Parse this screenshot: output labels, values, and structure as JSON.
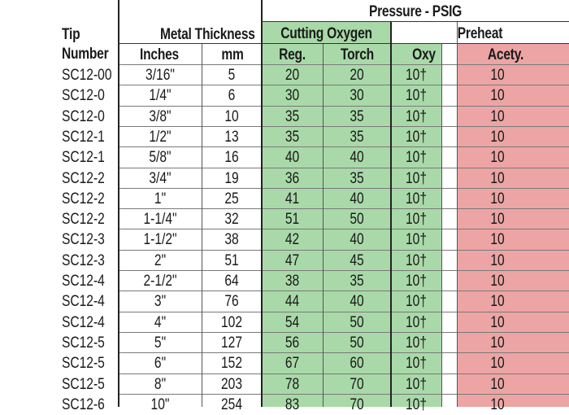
{
  "header": {
    "pressure_title": "Pressure - PSIG",
    "tip_label_1": "Tip",
    "tip_label_2": "Number",
    "metal_thickness": "Metal Thickness",
    "inches": "Inches",
    "mm": "mm",
    "cutting_oxygen": "Cutting Oxygen",
    "preheat": "Preheat",
    "reg": "Reg.",
    "torch": "Torch",
    "oxy": "Oxy",
    "acety": "Acety."
  },
  "colors": {
    "green": "#a9d9a9",
    "pink": "#eca4a4"
  },
  "rows": [
    {
      "tip": "SC12-00",
      "inches": "3/16\"",
      "mm": "5",
      "reg": "20",
      "torch": "20",
      "oxy": "10†",
      "acety": "10"
    },
    {
      "tip": "SC12-0",
      "inches": "1/4\"",
      "mm": "6",
      "reg": "30",
      "torch": "30",
      "oxy": "10†",
      "acety": "10"
    },
    {
      "tip": "SC12-0",
      "inches": "3/8\"",
      "mm": "10",
      "reg": "35",
      "torch": "35",
      "oxy": "10†",
      "acety": "10"
    },
    {
      "tip": "SC12-1",
      "inches": "1/2\"",
      "mm": "13",
      "reg": "35",
      "torch": "35",
      "oxy": "10†",
      "acety": "10"
    },
    {
      "tip": "SC12-1",
      "inches": "5/8\"",
      "mm": "16",
      "reg": "40",
      "torch": "40",
      "oxy": "10†",
      "acety": "10"
    },
    {
      "tip": "SC12-2",
      "inches": "3/4\"",
      "mm": "19",
      "reg": "36",
      "torch": "35",
      "oxy": "10†",
      "acety": "10"
    },
    {
      "tip": "SC12-2",
      "inches": "1\"",
      "mm": "25",
      "reg": "41",
      "torch": "40",
      "oxy": "10†",
      "acety": "10"
    },
    {
      "tip": "SC12-2",
      "inches": "1-1/4\"",
      "mm": "32",
      "reg": "51",
      "torch": "50",
      "oxy": "10†",
      "acety": "10"
    },
    {
      "tip": "SC12-3",
      "inches": "1-1/2\"",
      "mm": "38",
      "reg": "42",
      "torch": "40",
      "oxy": "10†",
      "acety": "10"
    },
    {
      "tip": "SC12-3",
      "inches": "2\"",
      "mm": "51",
      "reg": "47",
      "torch": "45",
      "oxy": "10†",
      "acety": "10"
    },
    {
      "tip": "SC12-4",
      "inches": "2-1/2\"",
      "mm": "64",
      "reg": "38",
      "torch": "35",
      "oxy": "10†",
      "acety": "10"
    },
    {
      "tip": "SC12-4",
      "inches": "3\"",
      "mm": "76",
      "reg": "44",
      "torch": "40",
      "oxy": "10†",
      "acety": "10"
    },
    {
      "tip": "SC12-4",
      "inches": "4\"",
      "mm": "102",
      "reg": "54",
      "torch": "50",
      "oxy": "10†",
      "acety": "10"
    },
    {
      "tip": "SC12-5",
      "inches": "5\"",
      "mm": "127",
      "reg": "56",
      "torch": "50",
      "oxy": "10†",
      "acety": "10"
    },
    {
      "tip": "SC12-5",
      "inches": "6\"",
      "mm": "152",
      "reg": "67",
      "torch": "60",
      "oxy": "10†",
      "acety": "10"
    },
    {
      "tip": "SC12-5",
      "inches": "8\"",
      "mm": "203",
      "reg": "78",
      "torch": "70",
      "oxy": "10†",
      "acety": "10"
    },
    {
      "tip": "SC12-6",
      "inches": "10\"",
      "mm": "254",
      "reg": "83",
      "torch": "70",
      "oxy": "10†",
      "acety": "10"
    }
  ]
}
